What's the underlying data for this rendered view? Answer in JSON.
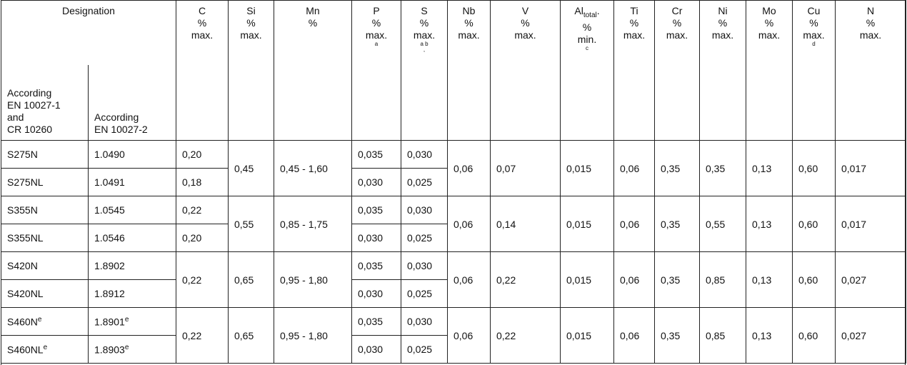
{
  "header": {
    "designation": "Designation",
    "sub": [
      "According\nEN  10027-1\nand\nCR 10260",
      "According\nEN 10027-2"
    ]
  },
  "elements": [
    {
      "symbol": "C",
      "unit": "%",
      "limit": "max."
    },
    {
      "symbol": "Si",
      "unit": "%",
      "limit": "max."
    },
    {
      "symbol": "Mn",
      "unit": "%"
    },
    {
      "symbol": "P",
      "unit": "%",
      "limit": "max.",
      "footnote": "a"
    },
    {
      "symbol": "S",
      "unit": "%",
      "limit": "max.",
      "footnote": "a b\n,"
    },
    {
      "symbol": "Nb",
      "unit": "%",
      "limit": "max."
    },
    {
      "symbol": "V",
      "unit": "%",
      "limit": "max."
    },
    {
      "symbol": "Al",
      "subscript": "total",
      "suffix": ".",
      "unit": "%",
      "limit": "min.",
      "footnote": "c"
    },
    {
      "symbol": "Ti",
      "unit": "%",
      "limit": "max."
    },
    {
      "symbol": "Cr",
      "unit": "%",
      "limit": "max."
    },
    {
      "symbol": "Ni",
      "unit": "%",
      "limit": "max."
    },
    {
      "symbol": "Mo",
      "unit": "%",
      "limit": "max."
    },
    {
      "symbol": "Cu",
      "unit": "%",
      "limit": "max.",
      "footnote": "d"
    },
    {
      "symbol": "N",
      "unit": "%",
      "limit": "max."
    }
  ],
  "groups": [
    {
      "shared": {
        "Si": "0,45",
        "Mn": "0,45 - 1,60",
        "Nb": "0,06",
        "V": "0,07",
        "Al": "0,015",
        "Ti": "0,06",
        "Cr": "0,35",
        "Ni": "0,35",
        "Mo": "0,13",
        "Cu": "0,60",
        "N": "0,017"
      },
      "rows": [
        {
          "name": "S275N",
          "number": "1.0490",
          "C": "0,20",
          "P": "0,035",
          "S": "0,030"
        },
        {
          "name": "S275NL",
          "number": "1.0491",
          "C": "0,18",
          "P": "0,030",
          "S": "0,025"
        }
      ]
    },
    {
      "shared": {
        "Si": "0,55",
        "Mn": "0,85 - 1,75",
        "Nb": "0,06",
        "V": "0,14",
        "Al": "0,015",
        "Ti": "0,06",
        "Cr": "0,35",
        "Ni": "0,55",
        "Mo": "0,13",
        "Cu": "0,60",
        "N": "0,017"
      },
      "rows": [
        {
          "name": "S355N",
          "number": "1.0545",
          "C": "0,22",
          "P": "0,035",
          "S": "0,030"
        },
        {
          "name": "S355NL",
          "number": "1.0546",
          "C": "0,20",
          "P": "0,030",
          "S": "0,025"
        }
      ]
    },
    {
      "shared": {
        "C": "0,22",
        "Si": "0,65",
        "Mn": "0,95 - 1,80",
        "Nb": "0,06",
        "V": "0,22",
        "Al": "0,015",
        "Ti": "0,06",
        "Cr": "0,35",
        "Ni": "0,85",
        "Mo": "0,13",
        "Cu": "0,60",
        "N": "0,027"
      },
      "rows": [
        {
          "name": "S420N",
          "number": "1.8902",
          "P": "0,035",
          "S": "0,030"
        },
        {
          "name": "S420NL",
          "number": "1.8912",
          "P": "0,030",
          "S": "0,025"
        }
      ]
    },
    {
      "shared": {
        "C": "0,22",
        "Si": "0,65",
        "Mn": "0,95 - 1,80",
        "Nb": "0,06",
        "V": "0,22",
        "Al": "0,015",
        "Ti": "0,06",
        "Cr": "0,35",
        "Ni": "0,85",
        "Mo": "0,13",
        "Cu": "0,60",
        "N": "0,027"
      },
      "rows": [
        {
          "name": "S460N",
          "name_note": "e",
          "number": "1.8901",
          "number_note": "e",
          "P": "0,035",
          "S": "0,030"
        },
        {
          "name": "S460NL",
          "name_note": "e",
          "number": "1.8903",
          "number_note": "e",
          "P": "0,030",
          "S": "0,025"
        }
      ]
    }
  ]
}
